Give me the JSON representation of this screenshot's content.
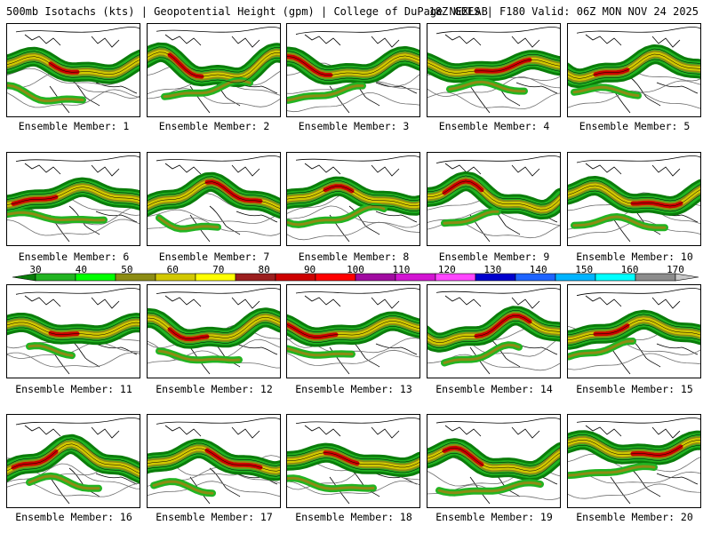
{
  "header": {
    "left": "500mb Isotachs (kts) | Geopotential Height (gpm) | College of DuPage NEXLAB",
    "right": "18Z GEFS | F180 Valid: 06Z MON NOV 24 2025"
  },
  "chart_data": {
    "type": "heatmap",
    "title": "500mb Isotachs (kts) | Geopotential Height (gpm) | College of DuPage NEXLAB",
    "subtitle": "18Z GEFS | F180 Valid: 06Z MON NOV 24 2025",
    "colorbar": {
      "tick_labels": [
        "30",
        "40",
        "50",
        "60",
        "70",
        "80",
        "90",
        "100",
        "110",
        "120",
        "130",
        "140",
        "150",
        "160",
        "170"
      ],
      "colors": [
        "#0a7d0a",
        "#22b422",
        "#00ff00",
        "#8c8c14",
        "#d2c800",
        "#ffff00",
        "#9b1e1e",
        "#cd0000",
        "#ff0000",
        "#a00aa0",
        "#d214d2",
        "#ff46ff",
        "#0000cd",
        "#1e64ff",
        "#00b4ff",
        "#00ffff",
        "#8c8c8c",
        "#c8c8c8"
      ]
    },
    "panels": [
      {
        "label": "Ensemble Member: 1"
      },
      {
        "label": "Ensemble Member: 2"
      },
      {
        "label": "Ensemble Member: 3"
      },
      {
        "label": "Ensemble Member: 4"
      },
      {
        "label": "Ensemble Member: 5"
      },
      {
        "label": "Ensemble Member: 6"
      },
      {
        "label": "Ensemble Member: 7"
      },
      {
        "label": "Ensemble Member: 8"
      },
      {
        "label": "Ensemble Member: 9"
      },
      {
        "label": "Ensemble Member: 10"
      },
      {
        "label": "Ensemble Member: 11"
      },
      {
        "label": "Ensemble Member: 12"
      },
      {
        "label": "Ensemble Member: 13"
      },
      {
        "label": "Ensemble Member: 14"
      },
      {
        "label": "Ensemble Member: 15"
      },
      {
        "label": "Ensemble Member: 16"
      },
      {
        "label": "Ensemble Member: 17"
      },
      {
        "label": "Ensemble Member: 18"
      },
      {
        "label": "Ensemble Member: 19"
      },
      {
        "label": "Ensemble Member: 20"
      }
    ]
  }
}
